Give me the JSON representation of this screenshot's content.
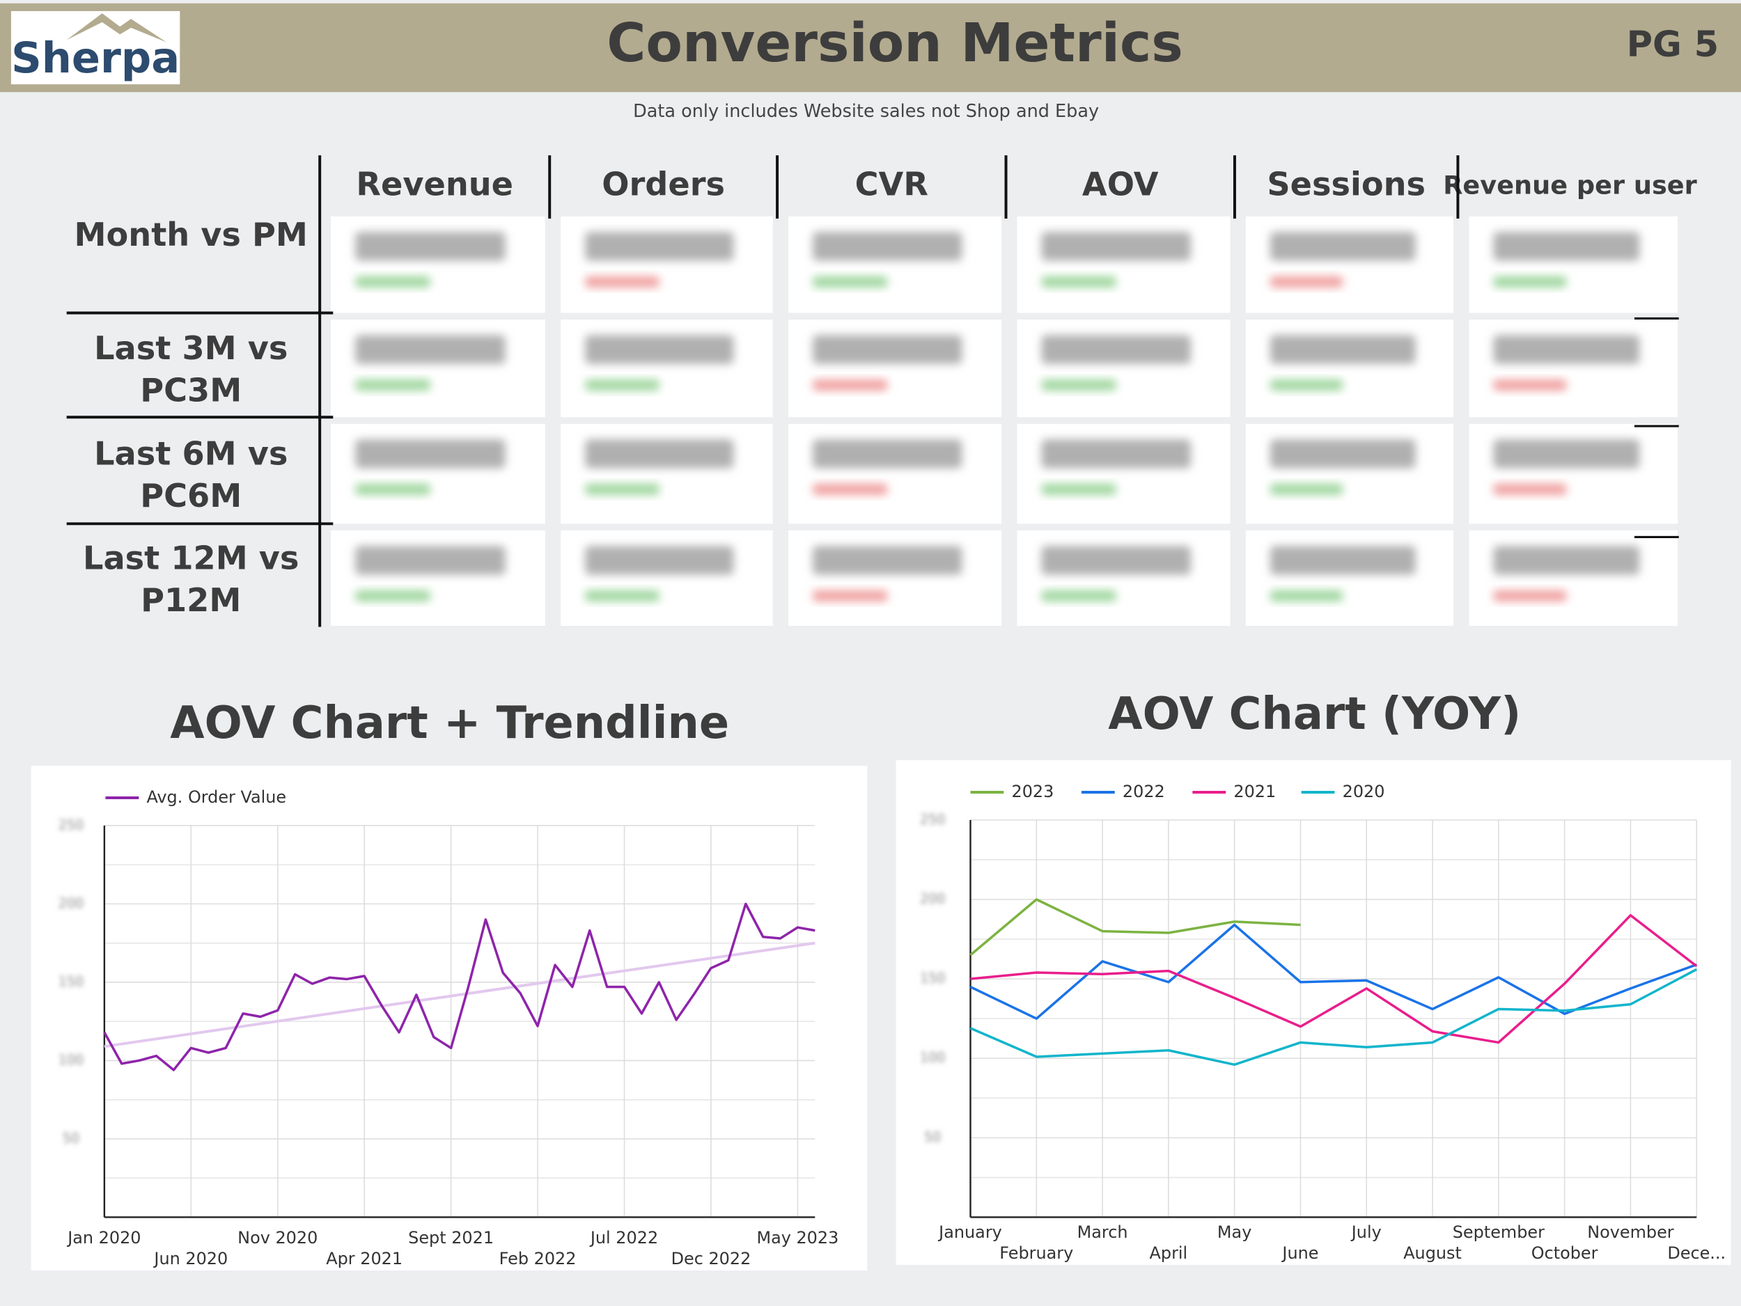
{
  "header": {
    "logo": "Sherpa",
    "title": "Conversion Metrics",
    "page": "PG 5",
    "subtitle": "Data only includes Website sales not Shop and Ebay"
  },
  "table": {
    "columns": [
      "Revenue",
      "Orders",
      "CVR",
      "AOV",
      "Sessions",
      "Revenue per user"
    ],
    "rows": [
      [
        "Month vs PM"
      ],
      [
        "Last 3M vs",
        "PC3M"
      ],
      [
        "Last 6M vs",
        "PC6M"
      ],
      [
        "Last 12M vs",
        "P12M"
      ]
    ]
  },
  "chart_data": [
    {
      "type": "line",
      "title": "AOV Chart + Trendline",
      "categories": [
        "Jan 2020",
        null,
        null,
        null,
        null,
        "Jun 2020",
        null,
        null,
        null,
        null,
        "Nov 2020",
        null,
        null,
        null,
        null,
        "Apr 2021",
        null,
        null,
        null,
        null,
        "Sept 2021",
        null,
        null,
        null,
        null,
        "Feb 2022",
        null,
        null,
        null,
        null,
        "Jul 2022",
        null,
        null,
        null,
        null,
        "Dec 2022",
        null,
        null,
        null,
        null,
        "May 2023",
        null
      ],
      "series": [
        {
          "name": "Avg. Order Value",
          "color": "#8e24aa",
          "values": [
            118,
            98,
            100,
            103,
            94,
            108,
            105,
            108,
            130,
            128,
            132,
            155,
            149,
            153,
            152,
            154,
            135,
            118,
            142,
            115,
            108,
            147,
            190,
            156,
            143,
            122,
            161,
            147,
            183,
            147,
            147,
            130,
            150,
            126,
            142,
            159,
            164,
            200,
            179,
            178,
            185,
            183
          ]
        }
      ],
      "trendline": {
        "color": "#e2c8ee",
        "values": [
          109,
          175
        ]
      },
      "ylim": [
        0,
        250
      ],
      "yticks": [
        50,
        100,
        150,
        200,
        250
      ],
      "grid": true,
      "legend": "top-left"
    },
    {
      "type": "line",
      "title": "AOV Chart (YOY)",
      "categories": [
        "January",
        "February",
        "March",
        "April",
        "May",
        "June",
        "July",
        "August",
        "September",
        "October",
        "November",
        "Dece..."
      ],
      "series": [
        {
          "name": "2023",
          "color": "#7cb342",
          "values": [
            165,
            200,
            180,
            179,
            186,
            184,
            null,
            null,
            null,
            null,
            null,
            null
          ]
        },
        {
          "name": "2022",
          "color": "#1a73e8",
          "values": [
            145,
            125,
            161,
            148,
            184,
            148,
            149,
            131,
            151,
            128,
            144,
            159
          ]
        },
        {
          "name": "2021",
          "color": "#e91e8c",
          "values": [
            150,
            154,
            153,
            155,
            138,
            120,
            144,
            117,
            110,
            147,
            190,
            158
          ]
        },
        {
          "name": "2020",
          "color": "#12b5cb",
          "values": [
            119,
            101,
            103,
            105,
            96,
            110,
            107,
            110,
            131,
            130,
            134,
            156
          ]
        }
      ],
      "ylim": [
        0,
        250
      ],
      "yticks": [
        50,
        100,
        150,
        200,
        250
      ],
      "grid": true,
      "legend": "top-left"
    }
  ]
}
